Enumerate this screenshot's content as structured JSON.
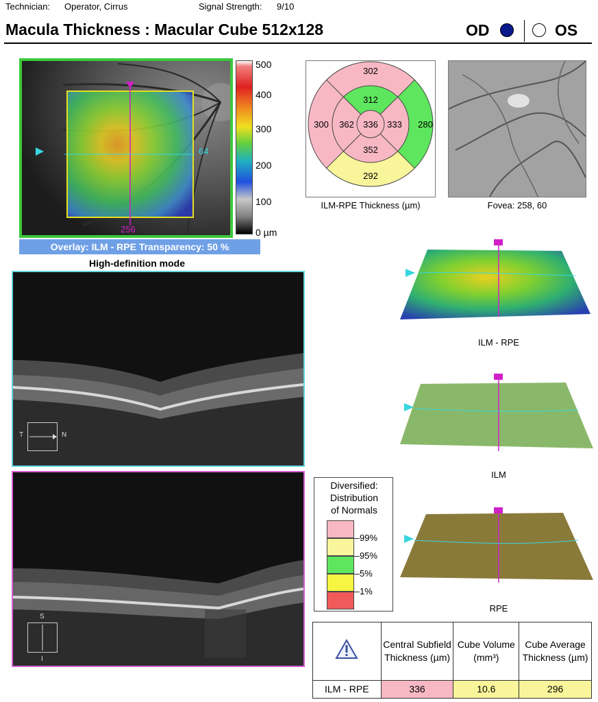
{
  "header": {
    "technician_label": "Technician:",
    "technician_value": "Operator, Cirrus",
    "signal_label": "Signal Strength:",
    "signal_value": "9/10",
    "title": "Macula Thickness : Macular Cube 512x128",
    "eye_od": "OD",
    "eye_os": "OS",
    "selected_eye": "OD"
  },
  "fundus": {
    "colorbar_ticks": [
      "500",
      "400",
      "300",
      "200",
      "100",
      "0 µm"
    ],
    "horizontal_marker": "64",
    "vertical_marker": "256",
    "overlay_text": "Overlay: ILM - RPE  Transparency: 50 %",
    "mode_text": "High-definition mode"
  },
  "grid": {
    "superior_outer": "302",
    "temporal_outer": "300",
    "nasal_outer": "280",
    "inferior_outer": "292",
    "superior_inner": "312",
    "temporal_inner": "362",
    "center": "336",
    "nasal_inner": "333",
    "inferior_inner": "352",
    "caption": "ILM-RPE Thickness (µm)"
  },
  "fovea": {
    "caption": "Fovea: 258, 60"
  },
  "bscans": {
    "horizontal": {
      "left": "T",
      "right": "N"
    },
    "vertical": {
      "top": "S",
      "bottom": "I"
    }
  },
  "surfaces": {
    "ilm_rpe": "ILM - RPE",
    "ilm": "ILM",
    "rpe": "RPE"
  },
  "legend": {
    "title_lines": [
      "Diversified:",
      "Distribution",
      "of Normals"
    ],
    "labels": [
      "99%",
      "95%",
      "5%",
      "1%"
    ],
    "colors": [
      "#f7b8c4",
      "#f9f59a",
      "#5ee65e",
      "#f5f542",
      "#f05a5a"
    ]
  },
  "table": {
    "col_central": "Central Subfield Thickness (µm)",
    "col_volume": "Cube Volume (mm³)",
    "col_average": "Cube Average Thickness (µm)",
    "row_label": "ILM - RPE",
    "central_value": "336",
    "volume_value": "10.6",
    "average_value": "296"
  },
  "colors": {
    "normal_pink": "#f7b8c4",
    "borderline_yellow": "#f9f59a",
    "normal_green": "#5ee65e"
  }
}
